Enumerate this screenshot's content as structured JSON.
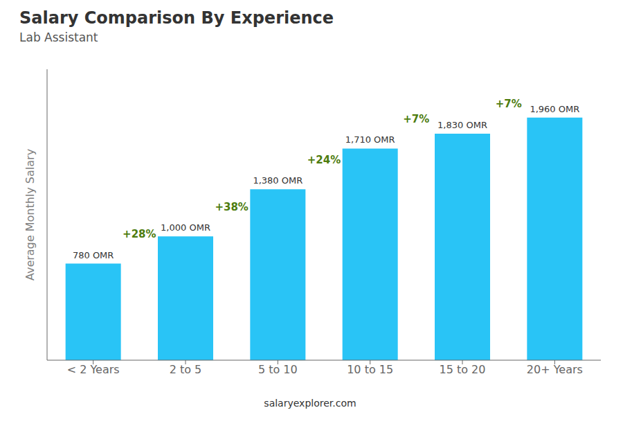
{
  "chart_data": {
    "type": "bar",
    "title": "Salary Comparison By Experience",
    "subtitle": "Lab Assistant",
    "y_label": "Average Monthly Salary",
    "footer": "salaryexplorer.com",
    "categories": [
      "< 2 Years",
      "2 to 5",
      "5 to 10",
      "10 to 15",
      "15 to 20",
      "20+ Years"
    ],
    "values": [
      780,
      1000,
      1380,
      1710,
      1830,
      1960
    ],
    "value_labels": [
      "780 OMR",
      "1,000 OMR",
      "1,380 OMR",
      "1,710 OMR",
      "1,830 OMR",
      "1,960 OMR"
    ],
    "data_labels": true,
    "annotations": [
      "+28%",
      "+38%",
      "+24%",
      "+7%",
      "+7%"
    ],
    "color": "#29c4f6",
    "ylim": [
      0,
      2350
    ],
    "grid": false,
    "tick_labels": "x"
  }
}
